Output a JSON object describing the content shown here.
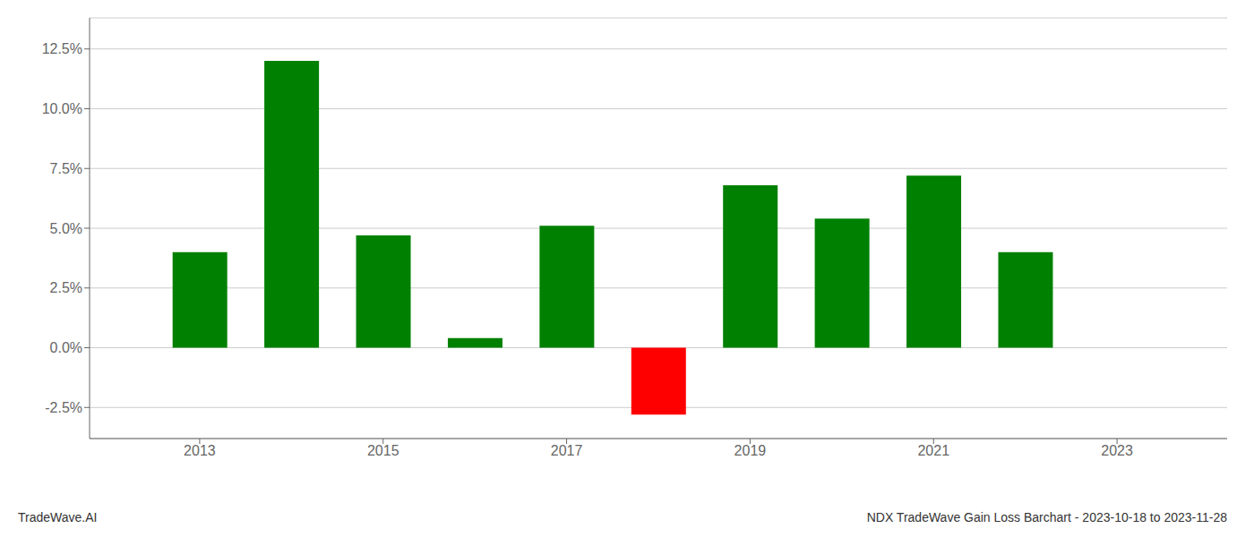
{
  "chart_data": {
    "type": "bar",
    "x": [
      2013,
      2014,
      2015,
      2016,
      2017,
      2018,
      2019,
      2020,
      2021,
      2022
    ],
    "values": [
      0.04,
      0.12,
      0.047,
      0.004,
      0.051,
      -0.028,
      0.068,
      0.054,
      0.072,
      0.04
    ],
    "colors": [
      "#008000",
      "#008000",
      "#008000",
      "#008000",
      "#008000",
      "#ff0000",
      "#008000",
      "#008000",
      "#008000",
      "#008000"
    ],
    "xlim": [
      2011.8,
      2024.2
    ],
    "xticks": [
      2013,
      2015,
      2017,
      2019,
      2021,
      2023
    ],
    "ylim": [
      -0.038,
      0.138
    ],
    "yticks": [
      {
        "value": -0.025,
        "label": "-2.5%"
      },
      {
        "value": 0.0,
        "label": "0.0%"
      },
      {
        "value": 0.025,
        "label": "2.5%"
      },
      {
        "value": 0.05,
        "label": "5.0%"
      },
      {
        "value": 0.075,
        "label": "7.5%"
      },
      {
        "value": 0.1,
        "label": "10.0%"
      },
      {
        "value": 0.125,
        "label": "12.5%"
      }
    ],
    "grid": true,
    "annotations": [
      "TradeWave.AI",
      "NDX TradeWave Gain Loss Barchart - 2023-10-18 to 2023-11-28"
    ]
  }
}
